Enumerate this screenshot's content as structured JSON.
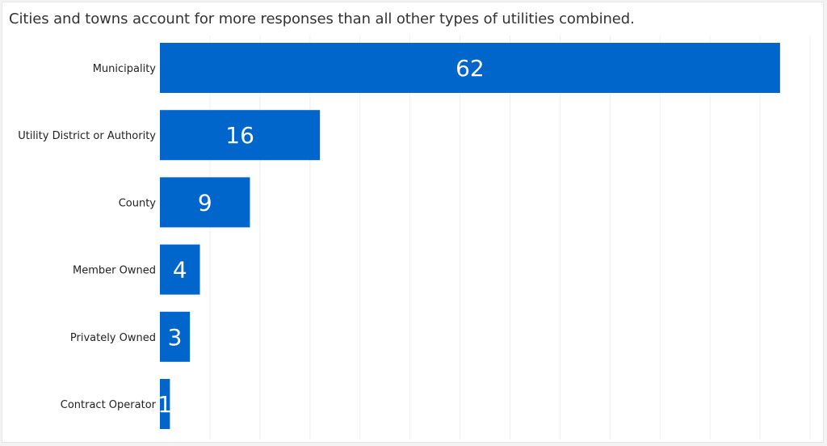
{
  "chart_data": {
    "type": "bar",
    "orientation": "horizontal",
    "title": "Cities and towns account for more responses than all other types of utilities combined.",
    "categories": [
      "Municipality",
      "Utility District or Authority",
      "County",
      "Member Owned",
      "Privately Owned",
      "Contract Operator"
    ],
    "values": [
      62,
      16,
      9,
      4,
      3,
      1
    ],
    "xlim": [
      0,
      65
    ],
    "grid": true,
    "colors": {
      "bar": "#0066cc",
      "grid": "#efefef",
      "value_label": "#ffffff"
    }
  }
}
